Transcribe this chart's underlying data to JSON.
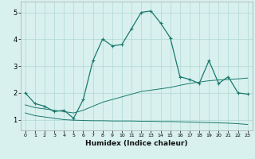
{
  "xlabel": "Humidex (Indice chaleur)",
  "background_color": "#d8f0ee",
  "grid_color": "#b0d8d4",
  "line_color": "#1a7a6e",
  "xlim": [
    -0.5,
    23.5
  ],
  "ylim": [
    0.6,
    5.4
  ],
  "yticks": [
    1,
    2,
    3,
    4,
    5
  ],
  "xtick_labels": [
    "0",
    "1",
    "2",
    "3",
    "4",
    "5",
    "6",
    "7",
    "8",
    "9",
    "10",
    "11",
    "12",
    "13",
    "14",
    "15",
    "16",
    "17",
    "18",
    "19",
    "20",
    "21",
    "22",
    "23"
  ],
  "series1_x": [
    0,
    1,
    2,
    3,
    4,
    5,
    6,
    7,
    8,
    9,
    10,
    11,
    12,
    13,
    14,
    15,
    16,
    17,
    18,
    19,
    20,
    21,
    22,
    23
  ],
  "series1_y": [
    2.0,
    1.6,
    1.5,
    1.3,
    1.35,
    1.05,
    1.75,
    3.2,
    4.0,
    3.75,
    3.8,
    4.4,
    5.0,
    5.05,
    4.6,
    4.05,
    2.6,
    2.5,
    2.35,
    3.2,
    2.35,
    2.6,
    2.0,
    1.95
  ],
  "series2_x": [
    0,
    1,
    2,
    3,
    4,
    5,
    6,
    7,
    8,
    9,
    10,
    11,
    12,
    13,
    14,
    15,
    16,
    17,
    18,
    19,
    20,
    21,
    22,
    23
  ],
  "series2_y": [
    1.55,
    1.45,
    1.4,
    1.35,
    1.3,
    1.25,
    1.35,
    1.5,
    1.65,
    1.75,
    1.85,
    1.95,
    2.05,
    2.1,
    2.15,
    2.2,
    2.28,
    2.35,
    2.4,
    2.45,
    2.48,
    2.5,
    2.52,
    2.55
  ],
  "series3_x": [
    0,
    1,
    2,
    3,
    4,
    5,
    6,
    7,
    8,
    9,
    10,
    11,
    12,
    13,
    14,
    15,
    16,
    17,
    18,
    19,
    20,
    21,
    22,
    23
  ],
  "series3_y": [
    1.25,
    1.15,
    1.1,
    1.05,
    1.0,
    0.98,
    0.97,
    0.96,
    0.96,
    0.95,
    0.95,
    0.95,
    0.94,
    0.94,
    0.93,
    0.93,
    0.92,
    0.91,
    0.9,
    0.89,
    0.88,
    0.87,
    0.85,
    0.82
  ]
}
